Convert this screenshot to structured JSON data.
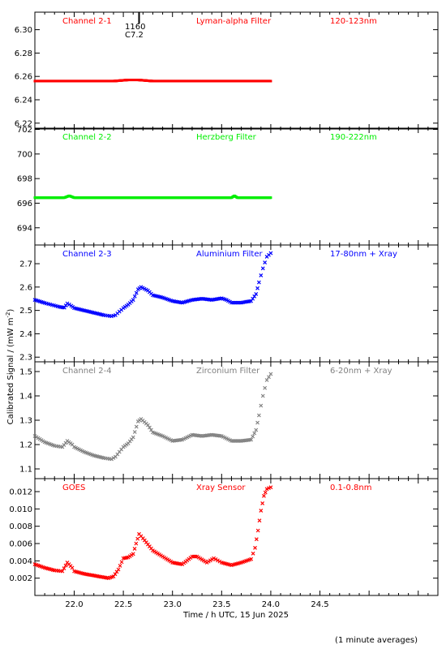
{
  "chart_data": {
    "type": "scatter",
    "xlabel": "Time / h UTC, 15 Jun 2025",
    "ylabel": "Calibrated Signal / (mW m",
    "ylabel_sup": "-2",
    "ylabel_close": ")",
    "footnote": "(1 minute averages)",
    "xlim": [
      21.6,
      25.7
    ],
    "xticks": [
      "22.0",
      "22.5",
      "23.0",
      "23.5",
      "24.0",
      "24.5"
    ],
    "panels": [
      {
        "channel": "Channel 2-1",
        "filter": "Lyman-alpha Filter",
        "band": "120-123nm",
        "color": "#ff0000",
        "marker": "dot",
        "ylim": [
          6.215,
          6.315
        ],
        "yticks": [
          "6.22",
          "6.24",
          "6.26",
          "6.28",
          "6.30"
        ],
        "event": {
          "x": 22.66,
          "line1": "1160",
          "line2": "C7.2"
        },
        "points": [
          [
            21.6,
            6.256
          ],
          [
            22.0,
            6.256
          ],
          [
            22.2,
            6.256
          ],
          [
            22.4,
            6.256
          ],
          [
            22.55,
            6.257
          ],
          [
            22.65,
            6.257
          ],
          [
            22.8,
            6.256
          ],
          [
            23.0,
            6.256
          ],
          [
            23.5,
            6.256
          ],
          [
            23.8,
            6.256
          ],
          [
            24.0,
            6.256
          ]
        ]
      },
      {
        "channel": "Channel 2-2",
        "filter": "Herzberg Filter",
        "band": "190-222nm",
        "color": "#00ee00",
        "marker": "dot",
        "ylim": [
          692.6,
          702.1
        ],
        "yticks": [
          "694",
          "696",
          "698",
          "700",
          "702"
        ],
        "points": [
          [
            21.6,
            696.45
          ],
          [
            21.9,
            696.45
          ],
          [
            21.95,
            696.6
          ],
          [
            22.0,
            696.45
          ],
          [
            22.5,
            696.45
          ],
          [
            23.0,
            696.45
          ],
          [
            23.6,
            696.45
          ],
          [
            23.63,
            696.6
          ],
          [
            23.66,
            696.45
          ],
          [
            24.0,
            696.45
          ]
        ]
      },
      {
        "channel": "Channel 2-3",
        "filter": "Aluminium Filter",
        "band": "17-80nm + Xray",
        "color": "#0000ff",
        "marker": "x",
        "ylim": [
          2.28,
          2.78
        ],
        "yticks": [
          "2.3",
          "2.4",
          "2.5",
          "2.6",
          "2.7"
        ],
        "points": [
          [
            21.6,
            2.545
          ],
          [
            21.7,
            2.532
          ],
          [
            21.85,
            2.515
          ],
          [
            21.9,
            2.512
          ],
          [
            21.93,
            2.53
          ],
          [
            21.97,
            2.52
          ],
          [
            22.0,
            2.51
          ],
          [
            22.1,
            2.5
          ],
          [
            22.2,
            2.49
          ],
          [
            22.3,
            2.48
          ],
          [
            22.38,
            2.475
          ],
          [
            22.42,
            2.48
          ],
          [
            22.5,
            2.51
          ],
          [
            22.55,
            2.525
          ],
          [
            22.6,
            2.545
          ],
          [
            22.65,
            2.59
          ],
          [
            22.68,
            2.6
          ],
          [
            22.75,
            2.585
          ],
          [
            22.8,
            2.565
          ],
          [
            22.9,
            2.555
          ],
          [
            23.0,
            2.54
          ],
          [
            23.1,
            2.533
          ],
          [
            23.2,
            2.545
          ],
          [
            23.3,
            2.55
          ],
          [
            23.4,
            2.545
          ],
          [
            23.5,
            2.552
          ],
          [
            23.55,
            2.545
          ],
          [
            23.6,
            2.533
          ],
          [
            23.7,
            2.533
          ],
          [
            23.75,
            2.537
          ],
          [
            23.8,
            2.54
          ],
          [
            23.85,
            2.57
          ],
          [
            23.88,
            2.62
          ],
          [
            23.92,
            2.68
          ],
          [
            23.96,
            2.73
          ],
          [
            24.0,
            2.745
          ]
        ]
      },
      {
        "channel": "Channel 2-4",
        "filter": "Zirconium Filter",
        "band": "6-20nm + Xray",
        "color": "#808080",
        "marker": "x",
        "ylim": [
          1.06,
          1.54
        ],
        "yticks": [
          "1.1",
          "1.2",
          "1.3",
          "1.4",
          "1.5"
        ],
        "points": [
          [
            21.6,
            1.235
          ],
          [
            21.7,
            1.21
          ],
          [
            21.8,
            1.195
          ],
          [
            21.88,
            1.19
          ],
          [
            21.93,
            1.215
          ],
          [
            21.98,
            1.2
          ],
          [
            22.0,
            1.19
          ],
          [
            22.1,
            1.17
          ],
          [
            22.2,
            1.155
          ],
          [
            22.3,
            1.145
          ],
          [
            22.38,
            1.14
          ],
          [
            22.42,
            1.15
          ],
          [
            22.5,
            1.19
          ],
          [
            22.55,
            1.205
          ],
          [
            22.6,
            1.23
          ],
          [
            22.65,
            1.295
          ],
          [
            22.68,
            1.305
          ],
          [
            22.75,
            1.28
          ],
          [
            22.8,
            1.25
          ],
          [
            22.9,
            1.235
          ],
          [
            23.0,
            1.215
          ],
          [
            23.1,
            1.22
          ],
          [
            23.2,
            1.24
          ],
          [
            23.3,
            1.235
          ],
          [
            23.4,
            1.24
          ],
          [
            23.5,
            1.235
          ],
          [
            23.6,
            1.215
          ],
          [
            23.7,
            1.215
          ],
          [
            23.8,
            1.22
          ],
          [
            23.85,
            1.26
          ],
          [
            23.88,
            1.32
          ],
          [
            23.92,
            1.4
          ],
          [
            23.96,
            1.465
          ],
          [
            24.0,
            1.49
          ]
        ]
      },
      {
        "channel": "GOES",
        "filter": "Xray Sensor",
        "band": "0.1-0.8nm",
        "color": "#ff0000",
        "marker": "x",
        "ylim": [
          0.0,
          0.0135
        ],
        "yticks": [
          "0.002",
          "0.004",
          "0.006",
          "0.008",
          "0.010",
          "0.012"
        ],
        "points": [
          [
            21.6,
            0.0036
          ],
          [
            21.7,
            0.0032
          ],
          [
            21.8,
            0.0029
          ],
          [
            21.88,
            0.0028
          ],
          [
            21.93,
            0.0038
          ],
          [
            21.98,
            0.0032
          ],
          [
            22.0,
            0.0028
          ],
          [
            22.1,
            0.0025
          ],
          [
            22.2,
            0.0023
          ],
          [
            22.3,
            0.0021
          ],
          [
            22.35,
            0.002
          ],
          [
            22.4,
            0.0022
          ],
          [
            22.45,
            0.003
          ],
          [
            22.5,
            0.0043
          ],
          [
            22.55,
            0.0044
          ],
          [
            22.6,
            0.0048
          ],
          [
            22.63,
            0.006
          ],
          [
            22.66,
            0.0071
          ],
          [
            22.7,
            0.0066
          ],
          [
            22.8,
            0.0052
          ],
          [
            22.9,
            0.0045
          ],
          [
            23.0,
            0.0038
          ],
          [
            23.1,
            0.0036
          ],
          [
            23.2,
            0.0045
          ],
          [
            23.25,
            0.0045
          ],
          [
            23.35,
            0.0038
          ],
          [
            23.42,
            0.0043
          ],
          [
            23.5,
            0.0038
          ],
          [
            23.6,
            0.0035
          ],
          [
            23.7,
            0.0038
          ],
          [
            23.8,
            0.0042
          ],
          [
            23.84,
            0.0055
          ],
          [
            23.87,
            0.0075
          ],
          [
            23.9,
            0.0098
          ],
          [
            23.93,
            0.0115
          ],
          [
            23.96,
            0.0123
          ],
          [
            24.0,
            0.0125
          ]
        ]
      }
    ]
  }
}
